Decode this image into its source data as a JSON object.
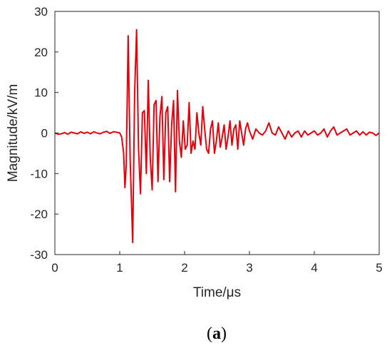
{
  "caption": {
    "open": "(",
    "letter": "a",
    "close": ")"
  },
  "chart_data": {
    "type": "line",
    "title": "",
    "xlabel": "Time/μs",
    "ylabel": "Magnitude/kV/m",
    "xlim": [
      0,
      5
    ],
    "ylim": [
      -30,
      30
    ],
    "xticks": [
      0,
      1,
      2,
      3,
      4,
      5
    ],
    "yticks": [
      -30,
      -20,
      -10,
      0,
      10,
      20,
      30
    ],
    "xtick_labels": [
      "0",
      "1",
      "2",
      "3",
      "4",
      "5"
    ],
    "ytick_labels": [
      "-30",
      "-20",
      "-10",
      "0",
      "10",
      "20",
      "30"
    ],
    "grid": false,
    "legend": "none",
    "series_color": "#e8000b",
    "series": [
      {
        "x": [
          0.0,
          0.05,
          0.1,
          0.15,
          0.2,
          0.25,
          0.3,
          0.35,
          0.4,
          0.45,
          0.5,
          0.55,
          0.6,
          0.65,
          0.7,
          0.75,
          0.8,
          0.85,
          0.9,
          0.95,
          1.0,
          1.03,
          1.06,
          1.08,
          1.1,
          1.13,
          1.16,
          1.2,
          1.23,
          1.26,
          1.29,
          1.32,
          1.35,
          1.38,
          1.41,
          1.44,
          1.47,
          1.5,
          1.53,
          1.56,
          1.59,
          1.62,
          1.65,
          1.68,
          1.71,
          1.74,
          1.77,
          1.8,
          1.83,
          1.86,
          1.89,
          1.92,
          1.95,
          1.98,
          2.01,
          2.04,
          2.07,
          2.1,
          2.13,
          2.16,
          2.19,
          2.22,
          2.25,
          2.28,
          2.31,
          2.34,
          2.37,
          2.4,
          2.43,
          2.46,
          2.49,
          2.52,
          2.55,
          2.58,
          2.61,
          2.64,
          2.67,
          2.7,
          2.73,
          2.76,
          2.79,
          2.82,
          2.85,
          2.88,
          2.91,
          2.94,
          2.97,
          3.0,
          3.05,
          3.1,
          3.15,
          3.2,
          3.25,
          3.3,
          3.35,
          3.4,
          3.45,
          3.5,
          3.55,
          3.6,
          3.65,
          3.7,
          3.75,
          3.8,
          3.85,
          3.9,
          3.95,
          4.0,
          4.05,
          4.1,
          4.15,
          4.2,
          4.25,
          4.3,
          4.35,
          4.4,
          4.45,
          4.5,
          4.55,
          4.6,
          4.65,
          4.7,
          4.75,
          4.8,
          4.85,
          4.9,
          4.95,
          5.0
        ],
        "y": [
          0.0,
          -0.3,
          -0.2,
          0.1,
          -0.3,
          0.2,
          0.0,
          -0.2,
          0.3,
          -0.1,
          0.2,
          -0.2,
          0.3,
          0.0,
          -0.2,
          0.2,
          0.4,
          -0.1,
          0.3,
          0.2,
          0.0,
          -1.0,
          -5.0,
          -13.5,
          -8.0,
          24.0,
          -6.0,
          -27.0,
          10.0,
          25.5,
          -4.0,
          -15.0,
          5.0,
          5.5,
          -10.0,
          13.0,
          -6.0,
          -14.0,
          7.0,
          8.0,
          -12.0,
          4.0,
          9.0,
          -11.5,
          5.0,
          6.5,
          -12.0,
          2.0,
          8.0,
          -14.5,
          10.5,
          -2.0,
          -6.0,
          3.0,
          -4.0,
          -3.0,
          7.5,
          -5.0,
          -2.0,
          -4.0,
          5.0,
          0.0,
          -3.0,
          6.5,
          1.0,
          -4.0,
          -5.0,
          1.0,
          3.0,
          -5.0,
          -2.0,
          2.5,
          -3.5,
          -1.0,
          2.0,
          -4.0,
          -1.0,
          3.0,
          -3.0,
          1.0,
          2.0,
          -4.0,
          3.0,
          0.0,
          -3.0,
          1.0,
          2.5,
          0.5,
          -1.5,
          1.0,
          0.0,
          -0.5,
          0.5,
          2.5,
          0.0,
          -0.5,
          1.5,
          0.0,
          -1.5,
          0.5,
          -1.0,
          0.0,
          0.5,
          -1.0,
          0.5,
          -0.5,
          0.0,
          0.5,
          -0.5,
          0.0,
          1.0,
          -1.0,
          0.5,
          1.5,
          -0.5,
          0.0,
          0.5,
          1.0,
          -0.5,
          0.0,
          0.5,
          -0.5,
          0.3,
          -0.5,
          0.2,
          0.0,
          -0.6,
          0.0
        ]
      }
    ]
  }
}
